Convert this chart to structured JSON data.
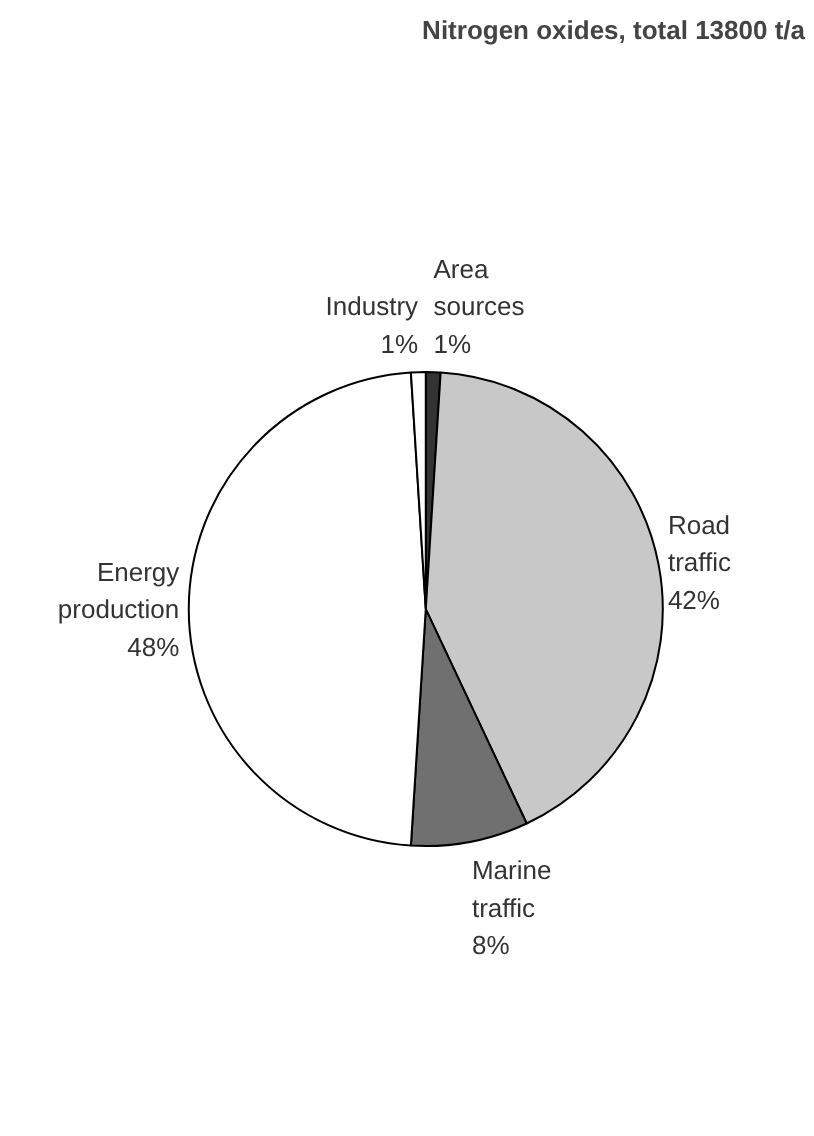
{
  "chart_data": {
    "type": "pie",
    "title": "Nitrogen oxides, total 13800 t/a",
    "categories": [
      "Area\nsources",
      "Road\ntraffic",
      "Marine\ntraffic",
      "Energy\nproduction",
      "Industry"
    ],
    "values": [
      1,
      42,
      8,
      48,
      1
    ],
    "value_labels": [
      "1%",
      "42%",
      "8%",
      "48%",
      "1%"
    ],
    "colors": [
      "#333333",
      "#c8c8c8",
      "#707070",
      "#ffffff",
      "#ffffff"
    ]
  }
}
